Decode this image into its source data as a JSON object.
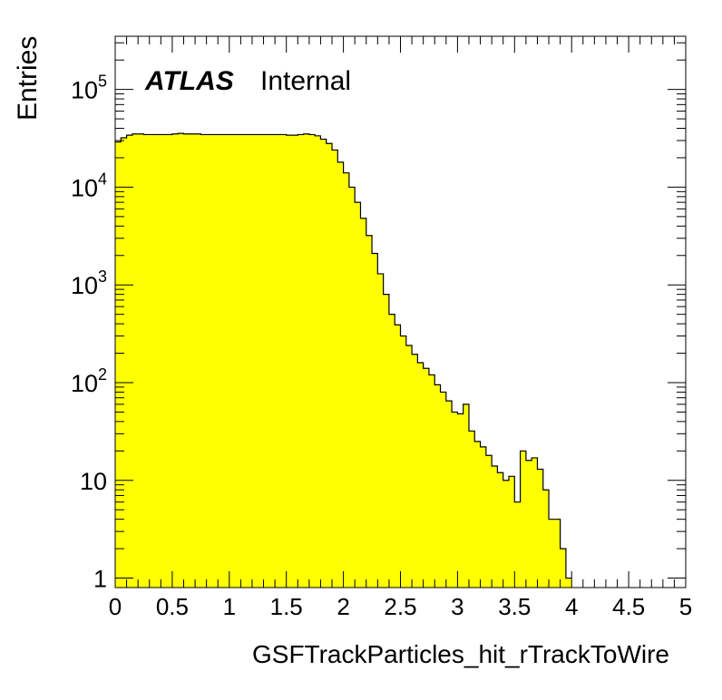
{
  "chart_data": {
    "type": "histogram",
    "title": "",
    "xlabel": "GSFTrackParticles_hit_rTrackToWire",
    "ylabel": "Entries",
    "label_atlas": "ATLAS",
    "label_status": "Internal",
    "xlim": [
      0,
      5
    ],
    "ylim": [
      0.8,
      350000
    ],
    "y_scale": "log",
    "x_ticks": [
      "0",
      "0.5",
      "1",
      "1.5",
      "2",
      "2.5",
      "3",
      "3.5",
      "4",
      "4.5",
      "5"
    ],
    "y_ticks": [
      {
        "value": 1,
        "base": "1",
        "exp": ""
      },
      {
        "value": 10,
        "base": "10",
        "exp": ""
      },
      {
        "value": 100,
        "base": "10",
        "exp": "2"
      },
      {
        "value": 1000,
        "base": "10",
        "exp": "3"
      },
      {
        "value": 10000,
        "base": "10",
        "exp": "4"
      },
      {
        "value": 100000,
        "base": "10",
        "exp": "5"
      }
    ],
    "grid": false,
    "fill_color": "#ffff00",
    "line_color": "#000000",
    "bin_edges_range": [
      0,
      5
    ],
    "bin_width": 0.05,
    "values": [
      29000,
      32000,
      34000,
      35000,
      35000,
      34500,
      34500,
      34500,
      34500,
      34500,
      35000,
      35500,
      35000,
      35000,
      35000,
      34500,
      34500,
      34500,
      34500,
      34500,
      34500,
      34500,
      34500,
      34500,
      34500,
      34500,
      34500,
      34500,
      34500,
      34500,
      34000,
      34000,
      34500,
      35000,
      34500,
      33500,
      31000,
      28000,
      24000,
      18000,
      14000,
      10000,
      7000,
      4800,
      3200,
      2100,
      1300,
      800,
      500,
      390,
      300,
      240,
      195,
      160,
      140,
      120,
      95,
      80,
      65,
      50,
      48,
      60,
      32,
      25,
      22,
      18,
      14,
      12,
      10,
      11,
      6,
      20,
      16,
      17,
      13,
      8,
      4,
      4,
      2,
      1
    ]
  }
}
